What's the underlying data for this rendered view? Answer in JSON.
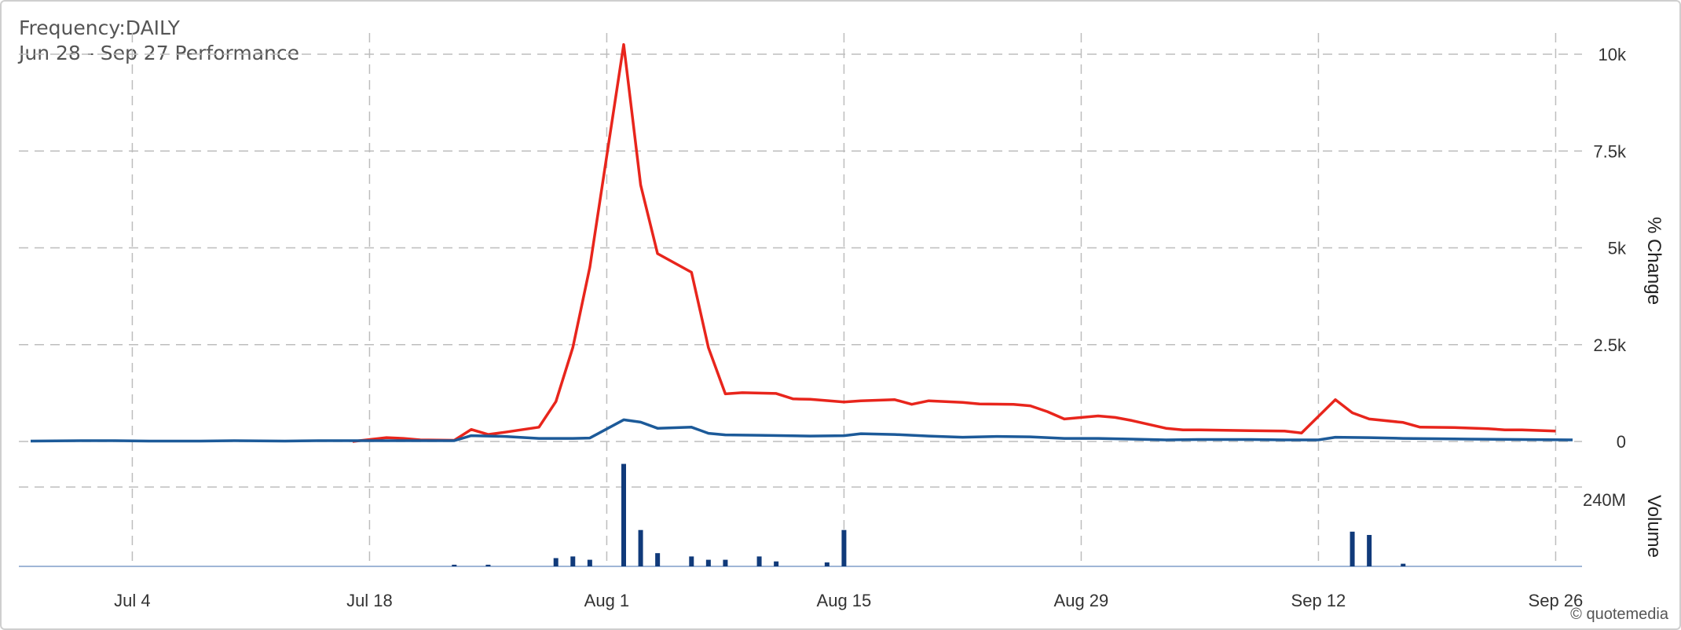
{
  "header": {
    "frequency": "Frequency:DAILY",
    "performance": "Jun 28 - Sep 27 Performance"
  },
  "copyright": "© quotemedia",
  "chart_data": [
    {
      "type": "line",
      "ylabel": "% Change",
      "ylim": [
        0,
        10500
      ],
      "yticks": [
        {
          "value": 0,
          "label": "0"
        },
        {
          "value": 2500,
          "label": "2.5k"
        },
        {
          "value": 5000,
          "label": "5k"
        },
        {
          "value": 7500,
          "label": "7.5k"
        },
        {
          "value": 10000,
          "label": "10k"
        }
      ],
      "xlim": [
        "2024-06-28",
        "2024-09-27"
      ],
      "xticks": [
        {
          "date": "2024-07-04",
          "label": "Jul 4"
        },
        {
          "date": "2024-07-18",
          "label": "Jul 18"
        },
        {
          "date": "2024-08-01",
          "label": "Aug 1"
        },
        {
          "date": "2024-08-15",
          "label": "Aug 15"
        },
        {
          "date": "2024-08-29",
          "label": "Aug 29"
        },
        {
          "date": "2024-09-12",
          "label": "Sep 12"
        },
        {
          "date": "2024-09-26",
          "label": "Sep 26"
        }
      ],
      "grid": true,
      "series": [
        {
          "color": "#e8251c",
          "points": [
            [
              "2024-07-17",
              0
            ],
            [
              "2024-07-19",
              100
            ],
            [
              "2024-07-20",
              80
            ],
            [
              "2024-07-21",
              40
            ],
            [
              "2024-07-23",
              30
            ],
            [
              "2024-07-24",
              310
            ],
            [
              "2024-07-25",
              180
            ],
            [
              "2024-07-26",
              240
            ],
            [
              "2024-07-28",
              370
            ],
            [
              "2024-07-29",
              1030
            ],
            [
              "2024-07-30",
              2430
            ],
            [
              "2024-07-31",
              4500
            ],
            [
              "2024-08-02",
              10250
            ],
            [
              "2024-08-03",
              6620
            ],
            [
              "2024-08-04",
              4850
            ],
            [
              "2024-08-06",
              4370
            ],
            [
              "2024-08-07",
              2420
            ],
            [
              "2024-08-08",
              1230
            ],
            [
              "2024-08-09",
              1260
            ],
            [
              "2024-08-11",
              1240
            ],
            [
              "2024-08-12",
              1100
            ],
            [
              "2024-08-13",
              1090
            ],
            [
              "2024-08-15",
              1020
            ],
            [
              "2024-08-16",
              1050
            ],
            [
              "2024-08-18",
              1080
            ],
            [
              "2024-08-19",
              960
            ],
            [
              "2024-08-20",
              1050
            ],
            [
              "2024-08-22",
              1010
            ],
            [
              "2024-08-23",
              970
            ],
            [
              "2024-08-25",
              960
            ],
            [
              "2024-08-26",
              920
            ],
            [
              "2024-08-27",
              770
            ],
            [
              "2024-08-28",
              580
            ],
            [
              "2024-08-30",
              660
            ],
            [
              "2024-08-31",
              620
            ],
            [
              "2024-09-01",
              540
            ],
            [
              "2024-09-03",
              340
            ],
            [
              "2024-09-04",
              300
            ],
            [
              "2024-09-05",
              300
            ],
            [
              "2024-09-08",
              280
            ],
            [
              "2024-09-10",
              270
            ],
            [
              "2024-09-11",
              220
            ],
            [
              "2024-09-13",
              1080
            ],
            [
              "2024-09-14",
              740
            ],
            [
              "2024-09-15",
              580
            ],
            [
              "2024-09-17",
              490
            ],
            [
              "2024-09-18",
              370
            ],
            [
              "2024-09-20",
              360
            ],
            [
              "2024-09-22",
              330
            ],
            [
              "2024-09-23",
              300
            ],
            [
              "2024-09-24",
              300
            ],
            [
              "2024-09-26",
              270
            ]
          ]
        },
        {
          "color": "#1c5a99",
          "points": [
            [
              "2024-06-28",
              10
            ],
            [
              "2024-07-01",
              20
            ],
            [
              "2024-07-03",
              20
            ],
            [
              "2024-07-05",
              10
            ],
            [
              "2024-07-08",
              10
            ],
            [
              "2024-07-10",
              20
            ],
            [
              "2024-07-13",
              10
            ],
            [
              "2024-07-15",
              20
            ],
            [
              "2024-07-18",
              20
            ],
            [
              "2024-07-21",
              20
            ],
            [
              "2024-07-23",
              20
            ],
            [
              "2024-07-24",
              150
            ],
            [
              "2024-07-26",
              130
            ],
            [
              "2024-07-28",
              80
            ],
            [
              "2024-07-30",
              80
            ],
            [
              "2024-07-31",
              90
            ],
            [
              "2024-08-02",
              560
            ],
            [
              "2024-08-03",
              500
            ],
            [
              "2024-08-04",
              340
            ],
            [
              "2024-08-06",
              370
            ],
            [
              "2024-08-07",
              210
            ],
            [
              "2024-08-08",
              170
            ],
            [
              "2024-08-10",
              160
            ],
            [
              "2024-08-13",
              140
            ],
            [
              "2024-08-15",
              150
            ],
            [
              "2024-08-16",
              200
            ],
            [
              "2024-08-18",
              180
            ],
            [
              "2024-08-20",
              140
            ],
            [
              "2024-08-22",
              110
            ],
            [
              "2024-08-24",
              130
            ],
            [
              "2024-08-26",
              120
            ],
            [
              "2024-08-28",
              80
            ],
            [
              "2024-08-30",
              80
            ],
            [
              "2024-09-01",
              60
            ],
            [
              "2024-09-03",
              40
            ],
            [
              "2024-09-05",
              50
            ],
            [
              "2024-09-08",
              50
            ],
            [
              "2024-09-10",
              40
            ],
            [
              "2024-09-12",
              40
            ],
            [
              "2024-09-13",
              110
            ],
            [
              "2024-09-15",
              100
            ],
            [
              "2024-09-17",
              80
            ],
            [
              "2024-09-19",
              70
            ],
            [
              "2024-09-21",
              60
            ],
            [
              "2024-09-24",
              50
            ],
            [
              "2024-09-27",
              40
            ]
          ]
        }
      ]
    },
    {
      "type": "bar",
      "ylabel": "Volume",
      "ylim": [
        0,
        330
      ],
      "yticks": [
        {
          "value": 240,
          "label": "240M"
        }
      ],
      "color": "#103a7a",
      "bars": [
        [
          "2024-07-23",
          5
        ],
        [
          "2024-07-25",
          5
        ],
        [
          "2024-07-29",
          25
        ],
        [
          "2024-07-30",
          30
        ],
        [
          "2024-07-31",
          20
        ],
        [
          "2024-08-02",
          310
        ],
        [
          "2024-08-03",
          110
        ],
        [
          "2024-08-04",
          40
        ],
        [
          "2024-08-06",
          30
        ],
        [
          "2024-08-07",
          20
        ],
        [
          "2024-08-08",
          20
        ],
        [
          "2024-08-10",
          30
        ],
        [
          "2024-08-11",
          15
        ],
        [
          "2024-08-14",
          12
        ],
        [
          "2024-08-15",
          110
        ],
        [
          "2024-09-14",
          105
        ],
        [
          "2024-09-15",
          95
        ],
        [
          "2024-09-17",
          8
        ]
      ]
    }
  ]
}
